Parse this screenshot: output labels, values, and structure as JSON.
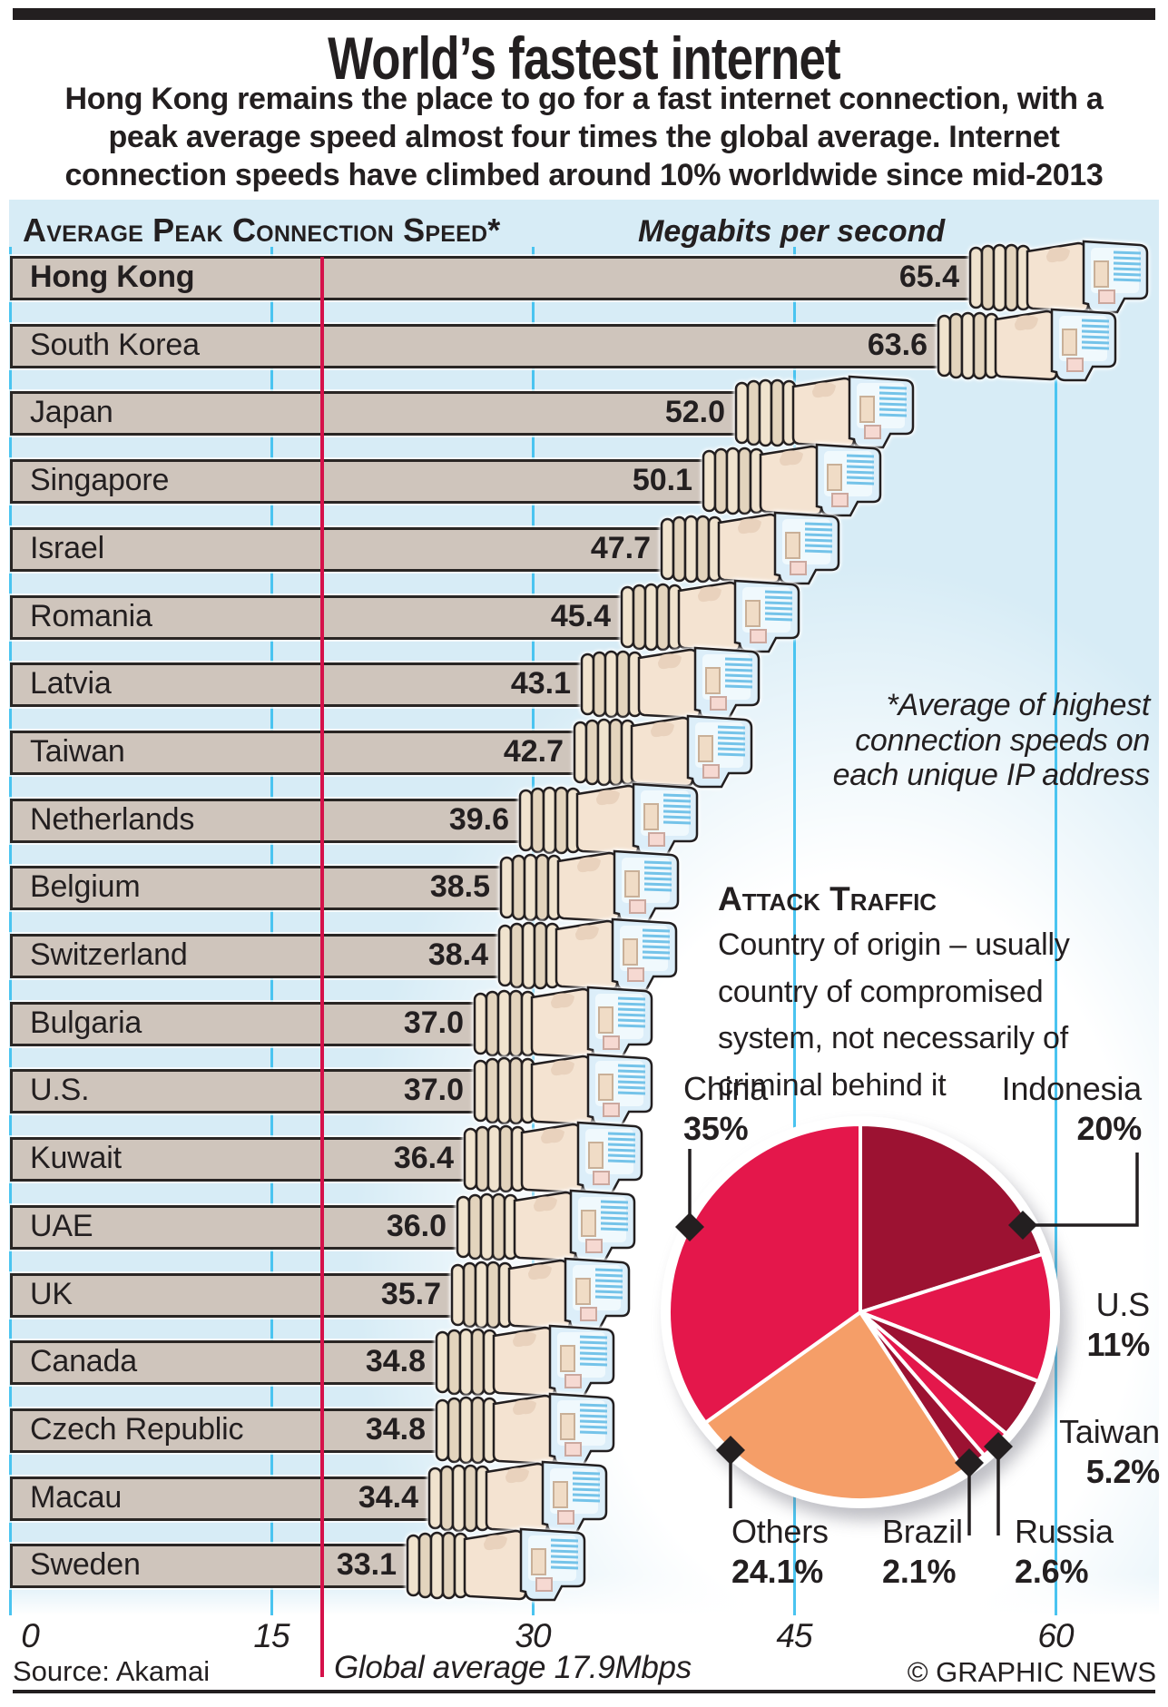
{
  "header": {
    "title": "World’s fastest internet",
    "subtitle_lines": [
      "Hong Kong remains the place to go for a fast internet connection, with a",
      "peak average speed almost four times the global average. Internet",
      "connection speeds have climbed around 10% worldwide since mid-2013"
    ]
  },
  "speed_chart": {
    "heading": "Average Peak Connection Speed*",
    "units_label": "Megabits per second",
    "global_average_label": "Global average 17.9Mbps",
    "annotation_lines": [
      "*Average of highest",
      "connection speeds on",
      "each unique IP address"
    ]
  },
  "attack_traffic": {
    "heading": "Attack Traffic",
    "description_lines": [
      "Country of origin – usually",
      "country of compromised",
      "system, not necessarily of",
      "criminal behind it"
    ]
  },
  "footer": {
    "source": "Source: Akamai",
    "credit": "© GRAPHIC NEWS"
  },
  "colors": {
    "panel_blue": "#d7ecf6",
    "gridline_cyan": "#4ac4f0",
    "average_line_red": "#d5114a",
    "bar_fill": "#cfc5bc",
    "bar_border": "#2a2624",
    "text": "#231f20",
    "pie_bright": "#e4174b",
    "pie_dark": "#9c1232",
    "pie_orange": "#f59e68"
  },
  "chart_data": [
    {
      "type": "bar",
      "title": "Average Peak Connection Speed*",
      "units": "Megabits per second",
      "orientation": "horizontal",
      "xlim": [
        0,
        66
      ],
      "x_ticks": [
        0,
        15,
        30,
        45,
        60
      ],
      "grid": true,
      "global_average": 17.9,
      "categories": [
        "Hong Kong",
        "South Korea",
        "Japan",
        "Singapore",
        "Israel",
        "Romania",
        "Latvia",
        "Taiwan",
        "Netherlands",
        "Belgium",
        "Switzerland",
        "Bulgaria",
        "U.S.",
        "Kuwait",
        "UAE",
        "UK",
        "Canada",
        "Czech Republic",
        "Macau",
        "Sweden"
      ],
      "values": [
        65.4,
        63.6,
        52.0,
        50.1,
        47.7,
        45.4,
        43.1,
        42.7,
        39.6,
        38.5,
        38.4,
        37.0,
        37.0,
        36.4,
        36.0,
        35.7,
        34.8,
        34.8,
        34.4,
        33.1
      ]
    },
    {
      "type": "pie",
      "title": "Attack Traffic",
      "start_angle_deg": -90,
      "clockwise": true,
      "slices": [
        {
          "label": "Indonesia",
          "value": 20,
          "display": "20%",
          "color": "#9c1232"
        },
        {
          "label": "U.S",
          "value": 11,
          "display": "11%",
          "color": "#e4174b"
        },
        {
          "label": "Taiwan",
          "value": 5.2,
          "display": "5.2%",
          "color": "#9c1232"
        },
        {
          "label": "Russia",
          "value": 2.6,
          "display": "2.6%",
          "color": "#e4174b"
        },
        {
          "label": "Brazil",
          "value": 2.1,
          "display": "2.1%",
          "color": "#9c1232"
        },
        {
          "label": "Others",
          "value": 24.1,
          "display": "24.1%",
          "color": "#f59e68"
        },
        {
          "label": "China",
          "value": 35,
          "display": "35%",
          "color": "#e4174b"
        }
      ]
    }
  ]
}
